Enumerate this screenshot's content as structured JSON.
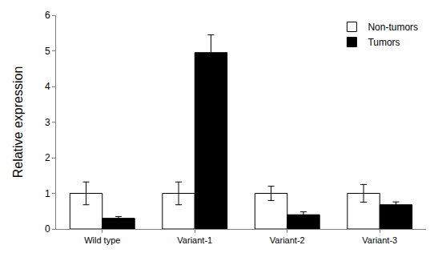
{
  "chart_data": {
    "type": "bar",
    "y_label": "Relative expression",
    "categories": [
      "Wild type",
      "Variant-1",
      "Variant-2",
      "Variant-3"
    ],
    "series": [
      {
        "name": "Non-tumors",
        "color": "#ffffff",
        "values": [
          1,
          1,
          1,
          1
        ],
        "errors": [
          0.32,
          0.32,
          0.2,
          0.25
        ]
      },
      {
        "name": "Tumors",
        "color": "#000000",
        "values": [
          0.3,
          4.95,
          0.4,
          0.68
        ],
        "errors": [
          0.05,
          0.5,
          0.08,
          0.08
        ]
      }
    ],
    "ylim": [
      0,
      6
    ],
    "yticks": [
      0,
      1,
      2,
      3,
      4,
      5,
      6
    ],
    "grid": false,
    "legend": "top-right"
  }
}
